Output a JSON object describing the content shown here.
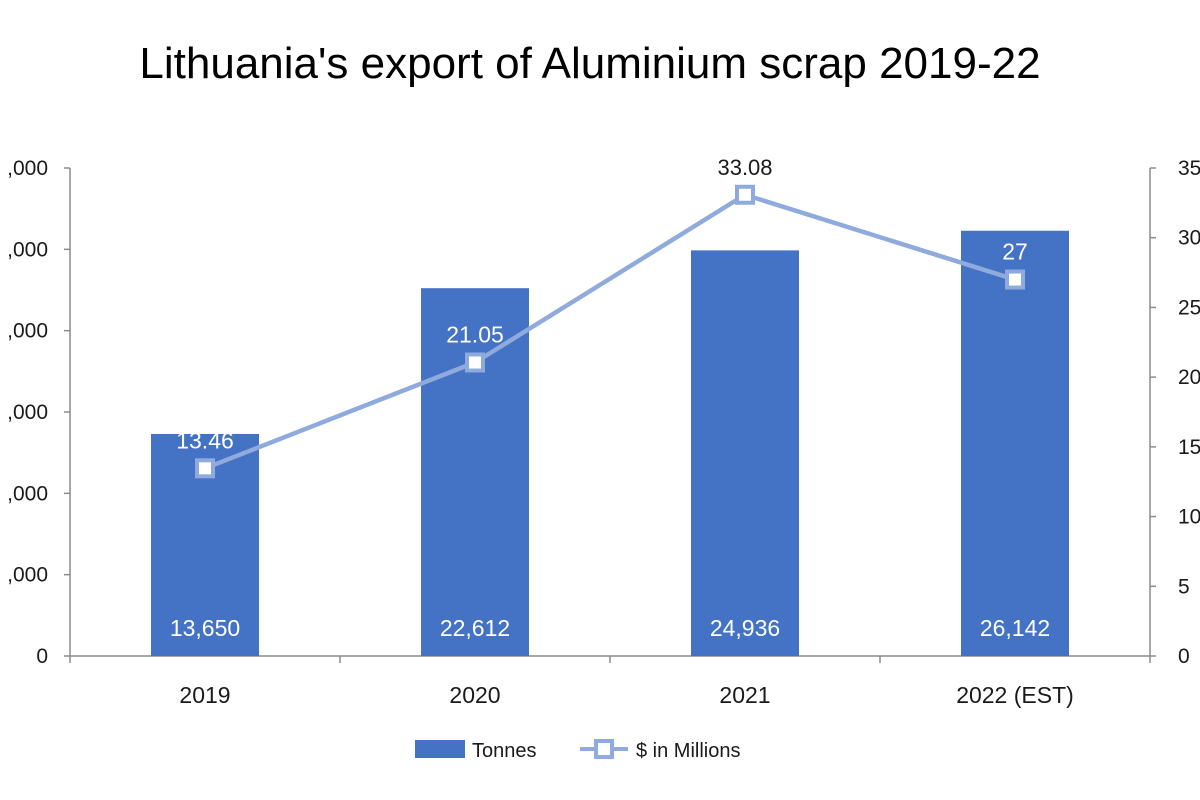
{
  "chart_data": {
    "type": "bar",
    "title": "Lithuania's export of Aluminium scrap 2019-22",
    "categories": [
      "2019",
      "2020",
      "2021",
      "2022 (EST)"
    ],
    "series": [
      {
        "name": "Tonnes",
        "type": "bar",
        "axis": "left",
        "values": [
          13650,
          22612,
          24936,
          26142
        ],
        "labels": [
          "13,650",
          "22,612",
          "24,936",
          "26,142"
        ],
        "color": "#4472C4"
      },
      {
        "name": "$ in Millions",
        "type": "line",
        "axis": "right",
        "values": [
          13.46,
          21.05,
          33.08,
          27
        ],
        "labels": [
          "13.46",
          "21.05",
          "33.08",
          "27"
        ],
        "color": "#8FAADC"
      }
    ],
    "y_left": {
      "ylim": [
        0,
        30000
      ],
      "ticks": [
        0,
        5000,
        10000,
        15000,
        20000,
        25000,
        30000
      ],
      "tick_labels": [
        "0",
        ",000",
        ",000",
        ",000",
        ",000",
        ",000",
        ",000"
      ]
    },
    "y_right": {
      "ylim": [
        0,
        35
      ],
      "ticks": [
        0,
        5,
        10,
        15,
        20,
        25,
        30,
        35
      ],
      "tick_labels": [
        "0",
        "5",
        "10",
        "15",
        "20",
        "25",
        "30",
        "35"
      ]
    },
    "grid": false,
    "legend": "bottom"
  }
}
